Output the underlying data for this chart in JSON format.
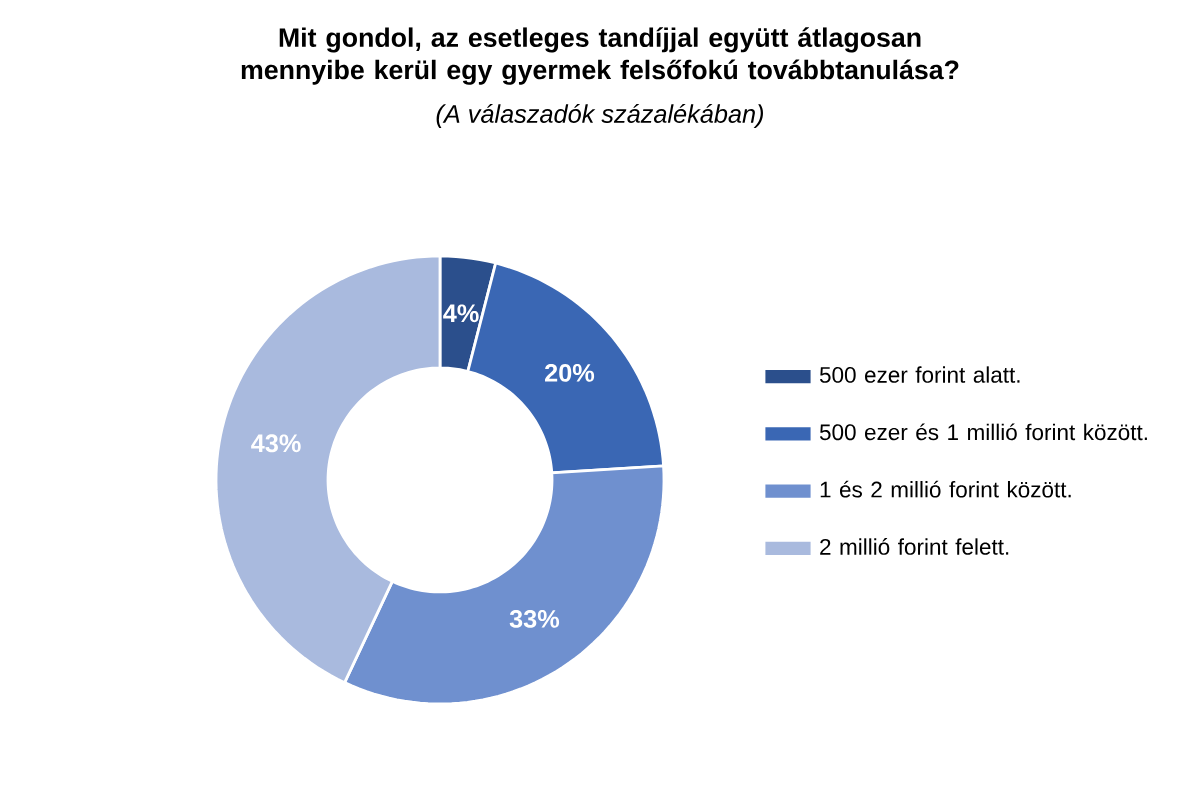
{
  "chart_data": {
    "type": "donut",
    "title": "Mit gondol, az esetleges tandíjjal együtt átlagosan mennyibe kerül egy gyermek felsőfokú továbbtanulása?",
    "subtitle": "(A válaszadók százalékában)",
    "categories": [
      "500 ezer forint alatt.",
      "500 ezer és 1 millió forint között.",
      "1 és 2 millió forint között.",
      "2 millió forint felett."
    ],
    "values": [
      4,
      20,
      33,
      43
    ],
    "value_labels": [
      "4%",
      "20%",
      "33%",
      "43%"
    ],
    "colors": [
      "#2b4f8c",
      "#3a67b4",
      "#6f90cf",
      "#a9bade"
    ],
    "legend": "right"
  }
}
